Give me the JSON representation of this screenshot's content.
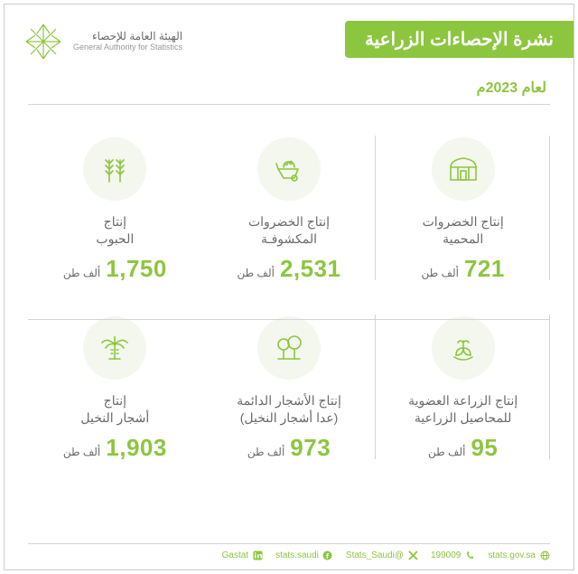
{
  "colors": {
    "green": "#8cc63f",
    "text_gray": "#6b6b6b",
    "border": "#d4d4d4",
    "bg": "#ffffff",
    "icon_bg": "#f3f7ee"
  },
  "header": {
    "org_ar": "الهيئة العامة للإحصاء",
    "org_en": "General Authority for Statistics",
    "title": "نشرة الإحصاءات الزراعية",
    "subtitle": "لعام 2023م"
  },
  "unit": "ألف طن",
  "items": [
    {
      "label": "إنتاج\nالحبوب",
      "value": "1,750"
    },
    {
      "label": "إنتاج الخضروات\nالمكشوفـة",
      "value": "2,531"
    },
    {
      "label": "إنتاج الخضروات\nالمحمية",
      "value": "721"
    },
    {
      "label": "إنتاج\nأشجار النخيل",
      "value": "1,903"
    },
    {
      "label": "إنتاج الأشجار الدائمة\n(عدا أشجار النخيل)",
      "value": "973"
    },
    {
      "label": "إنتاج الزراعة العضوية\nللمحاصيل الزراعية",
      "value": "95"
    }
  ],
  "footer": {
    "items": [
      {
        "icon": "globe",
        "text": "stats.gov.sa"
      },
      {
        "icon": "phone",
        "text": "199009"
      },
      {
        "icon": "x",
        "text": "@Stats_Saudi"
      },
      {
        "icon": "fb",
        "text": "stats.saudi"
      },
      {
        "icon": "in",
        "text": "Gastat"
      }
    ]
  }
}
